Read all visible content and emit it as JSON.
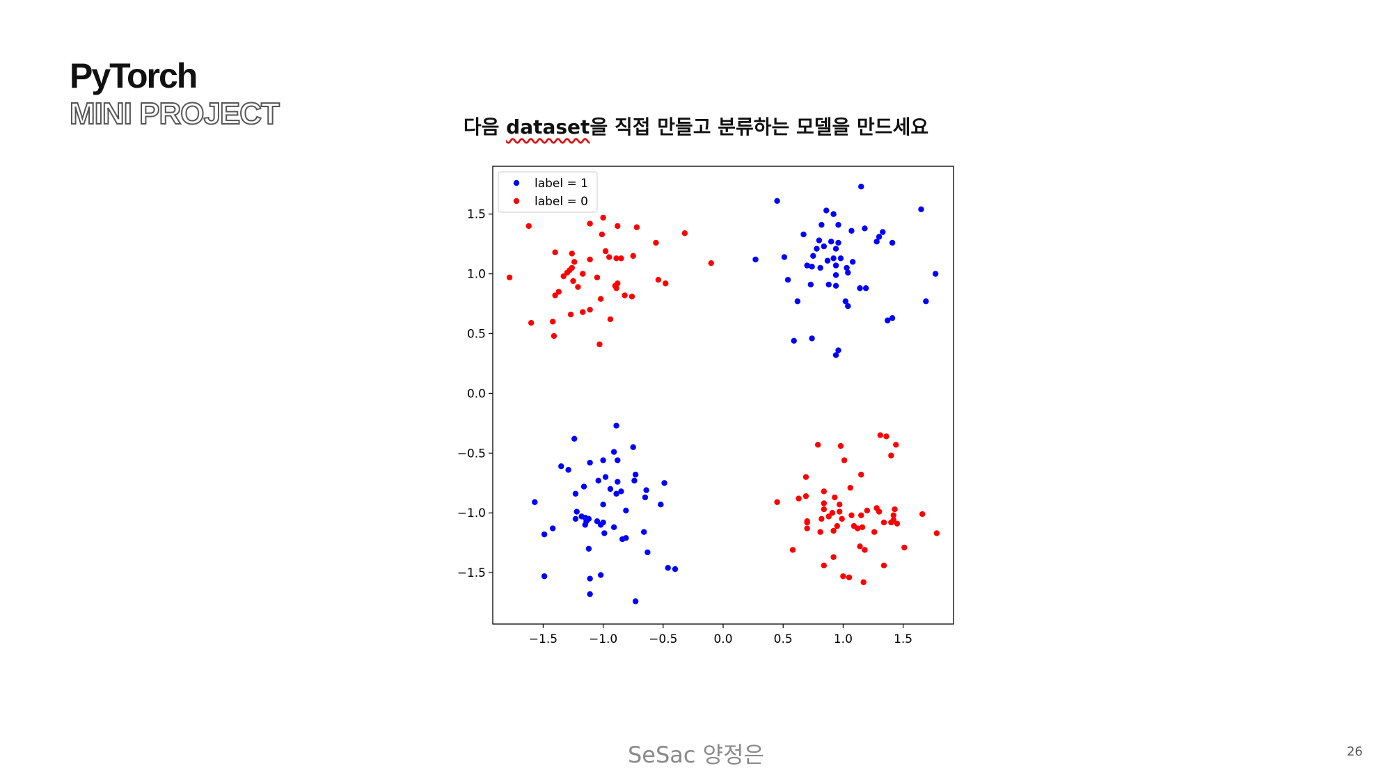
{
  "slide": {
    "title": "PyTorch",
    "subtitle": "MINI PROJECT",
    "task_prefix": "다음 ",
    "task_keyword": "dataset",
    "task_suffix": "을 직접 만들고 분류하는 모델을 만드세요",
    "footer_author": "SeSac 양정은",
    "page_number": "26"
  },
  "chart_data": {
    "type": "scatter",
    "title": "",
    "xlabel": "",
    "ylabel": "",
    "xlim": [
      -1.92,
      1.92
    ],
    "ylim": [
      -1.93,
      1.9
    ],
    "x_ticks": [
      -1.5,
      -1.0,
      -0.5,
      0.0,
      0.5,
      1.0,
      1.5
    ],
    "y_ticks": [
      -1.5,
      -1.0,
      -0.5,
      0.0,
      0.5,
      1.0,
      1.5
    ],
    "x_tick_labels": [
      "−1.5",
      "−1.0",
      "−0.5",
      "0.0",
      "0.5",
      "1.0",
      "1.5"
    ],
    "y_tick_labels": [
      "−1.5",
      "−1.0",
      "−0.5",
      "0.0",
      "0.5",
      "1.0",
      "1.5"
    ],
    "grid": false,
    "legend_position": "top-left",
    "series": [
      {
        "name": "label = 1",
        "color": "#0000ff",
        "points": [
          [
            0.45,
            1.61
          ],
          [
            1.15,
            1.73
          ],
          [
            1.65,
            1.54
          ],
          [
            0.86,
            1.53
          ],
          [
            0.92,
            1.5
          ],
          [
            0.96,
            1.41
          ],
          [
            0.82,
            1.41
          ],
          [
            1.07,
            1.36
          ],
          [
            1.18,
            1.38
          ],
          [
            1.33,
            1.35
          ],
          [
            1.3,
            1.31
          ],
          [
            0.67,
            1.33
          ],
          [
            0.8,
            1.28
          ],
          [
            0.9,
            1.27
          ],
          [
            0.96,
            1.26
          ],
          [
            1.28,
            1.27
          ],
          [
            1.41,
            1.26
          ],
          [
            0.84,
            1.23
          ],
          [
            0.78,
            1.21
          ],
          [
            0.94,
            1.21
          ],
          [
            0.75,
            1.15
          ],
          [
            0.92,
            1.13
          ],
          [
            0.98,
            1.13
          ],
          [
            0.27,
            1.12
          ],
          [
            0.51,
            1.14
          ],
          [
            0.87,
            1.11
          ],
          [
            1.08,
            1.1
          ],
          [
            0.7,
            1.07
          ],
          [
            0.74,
            1.06
          ],
          [
            0.94,
            1.07
          ],
          [
            1.03,
            1.05
          ],
          [
            0.81,
            1.05
          ],
          [
            1.04,
            1.01
          ],
          [
            1.77,
            1.0
          ],
          [
            0.94,
            0.99
          ],
          [
            0.54,
            0.95
          ],
          [
            0.73,
            0.91
          ],
          [
            0.88,
            0.91
          ],
          [
            0.94,
            0.9
          ],
          [
            1.14,
            0.88
          ],
          [
            1.19,
            0.88
          ],
          [
            1.02,
            0.77
          ],
          [
            0.62,
            0.77
          ],
          [
            1.69,
            0.77
          ],
          [
            1.04,
            0.73
          ],
          [
            1.41,
            0.63
          ],
          [
            1.37,
            0.61
          ],
          [
            0.74,
            0.46
          ],
          [
            0.59,
            0.44
          ],
          [
            0.96,
            0.36
          ],
          [
            0.94,
            0.32
          ],
          [
            -0.89,
            -0.27
          ],
          [
            -1.24,
            -0.38
          ],
          [
            -0.75,
            -0.45
          ],
          [
            -0.91,
            -0.49
          ],
          [
            -1.0,
            -0.56
          ],
          [
            -1.11,
            -0.58
          ],
          [
            -0.88,
            -0.56
          ],
          [
            -1.35,
            -0.61
          ],
          [
            -1.29,
            -0.64
          ],
          [
            -0.98,
            -0.7
          ],
          [
            -1.04,
            -0.73
          ],
          [
            -0.74,
            -0.73
          ],
          [
            -0.88,
            -0.74
          ],
          [
            -0.73,
            -0.68
          ],
          [
            -0.85,
            -0.82
          ],
          [
            -0.49,
            -0.75
          ],
          [
            -1.16,
            -0.78
          ],
          [
            -0.94,
            -0.8
          ],
          [
            -0.64,
            -0.81
          ],
          [
            -1.23,
            -0.84
          ],
          [
            -0.89,
            -0.84
          ],
          [
            -0.65,
            -0.87
          ],
          [
            -1.57,
            -0.91
          ],
          [
            -1.0,
            -0.93
          ],
          [
            -0.52,
            -0.93
          ],
          [
            -1.22,
            -0.99
          ],
          [
            -0.81,
            -0.98
          ],
          [
            -1.18,
            -1.03
          ],
          [
            -1.15,
            -1.04
          ],
          [
            -1.12,
            -1.05
          ],
          [
            -1.23,
            -1.05
          ],
          [
            -1.14,
            -1.07
          ],
          [
            -1.05,
            -1.07
          ],
          [
            -1.0,
            -1.08
          ],
          [
            -1.02,
            -1.1
          ],
          [
            -1.15,
            -1.1
          ],
          [
            -0.91,
            -1.12
          ],
          [
            -1.42,
            -1.13
          ],
          [
            -0.66,
            -1.16
          ],
          [
            -0.99,
            -1.17
          ],
          [
            -1.49,
            -1.18
          ],
          [
            -0.81,
            -1.21
          ],
          [
            -0.84,
            -1.22
          ],
          [
            -1.12,
            -1.3
          ],
          [
            -0.63,
            -1.33
          ],
          [
            -0.46,
            -1.46
          ],
          [
            -0.4,
            -1.47
          ],
          [
            -1.02,
            -1.52
          ],
          [
            -1.49,
            -1.53
          ],
          [
            -1.11,
            -1.55
          ],
          [
            -1.11,
            -1.68
          ],
          [
            -0.73,
            -1.74
          ]
        ]
      },
      {
        "name": "label = 0",
        "color": "#ff0000",
        "points": [
          [
            -1.0,
            1.47
          ],
          [
            -1.11,
            1.42
          ],
          [
            -0.88,
            1.4
          ],
          [
            -0.72,
            1.39
          ],
          [
            -1.62,
            1.4
          ],
          [
            -1.01,
            1.33
          ],
          [
            -0.32,
            1.34
          ],
          [
            -0.56,
            1.26
          ],
          [
            -0.98,
            1.19
          ],
          [
            -1.4,
            1.18
          ],
          [
            -1.26,
            1.17
          ],
          [
            -0.95,
            1.14
          ],
          [
            -0.75,
            1.15
          ],
          [
            -1.11,
            1.12
          ],
          [
            -1.24,
            1.1
          ],
          [
            -0.89,
            1.13
          ],
          [
            -0.85,
            1.13
          ],
          [
            -0.1,
            1.09
          ],
          [
            -1.26,
            1.05
          ],
          [
            -1.28,
            1.03
          ],
          [
            -1.17,
            1.0
          ],
          [
            -1.33,
            0.98
          ],
          [
            -1.3,
            1.01
          ],
          [
            -1.78,
            0.97
          ],
          [
            -1.05,
            0.97
          ],
          [
            -0.88,
            0.92
          ],
          [
            -0.9,
            0.9
          ],
          [
            -1.25,
            0.94
          ],
          [
            -0.54,
            0.95
          ],
          [
            -0.48,
            0.92
          ],
          [
            -0.89,
            0.88
          ],
          [
            -1.21,
            0.89
          ],
          [
            -1.37,
            0.85
          ],
          [
            -0.82,
            0.82
          ],
          [
            -1.4,
            0.82
          ],
          [
            -0.76,
            0.81
          ],
          [
            -1.02,
            0.79
          ],
          [
            -1.11,
            0.7
          ],
          [
            -1.17,
            0.68
          ],
          [
            -1.27,
            0.66
          ],
          [
            -0.94,
            0.62
          ],
          [
            -1.42,
            0.6
          ],
          [
            -1.6,
            0.59
          ],
          [
            -1.41,
            0.48
          ],
          [
            -1.03,
            0.41
          ],
          [
            1.31,
            -0.35
          ],
          [
            1.36,
            -0.36
          ],
          [
            0.79,
            -0.43
          ],
          [
            0.98,
            -0.44
          ],
          [
            1.44,
            -0.43
          ],
          [
            1.4,
            -0.52
          ],
          [
            1.01,
            -0.56
          ],
          [
            1.15,
            -0.68
          ],
          [
            0.69,
            -0.7
          ],
          [
            1.06,
            -0.79
          ],
          [
            0.84,
            -0.82
          ],
          [
            0.69,
            -0.86
          ],
          [
            0.93,
            -0.87
          ],
          [
            0.63,
            -0.88
          ],
          [
            0.45,
            -0.91
          ],
          [
            0.84,
            -0.92
          ],
          [
            0.97,
            -0.93
          ],
          [
            1.28,
            -0.96
          ],
          [
            0.84,
            -0.97
          ],
          [
            1.43,
            -0.97
          ],
          [
            0.97,
            -0.99
          ],
          [
            1.2,
            -0.98
          ],
          [
            1.3,
            -0.99
          ],
          [
            0.91,
            -1.0
          ],
          [
            1.66,
            -1.01
          ],
          [
            1.07,
            -1.02
          ],
          [
            1.15,
            -1.02
          ],
          [
            0.88,
            -1.03
          ],
          [
            1.42,
            -1.02
          ],
          [
            0.99,
            -1.05
          ],
          [
            0.82,
            -1.05
          ],
          [
            1.42,
            -1.06
          ],
          [
            0.7,
            -1.07
          ],
          [
            1.34,
            -1.08
          ],
          [
            1.4,
            -1.08
          ],
          [
            1.45,
            -1.09
          ],
          [
            0.7,
            -1.08
          ],
          [
            1.09,
            -1.11
          ],
          [
            0.95,
            -1.11
          ],
          [
            1.12,
            -1.13
          ],
          [
            1.16,
            -1.12
          ],
          [
            0.7,
            -1.13
          ],
          [
            0.81,
            -1.16
          ],
          [
            0.92,
            -1.15
          ],
          [
            1.78,
            -1.17
          ],
          [
            1.26,
            -1.16
          ],
          [
            1.14,
            -1.28
          ],
          [
            0.58,
            -1.31
          ],
          [
            1.51,
            -1.29
          ],
          [
            1.18,
            -1.31
          ],
          [
            0.92,
            -1.37
          ],
          [
            1.34,
            -1.44
          ],
          [
            0.84,
            -1.44
          ],
          [
            1.0,
            -1.53
          ],
          [
            1.05,
            -1.54
          ],
          [
            1.17,
            -1.58
          ]
        ]
      }
    ]
  }
}
